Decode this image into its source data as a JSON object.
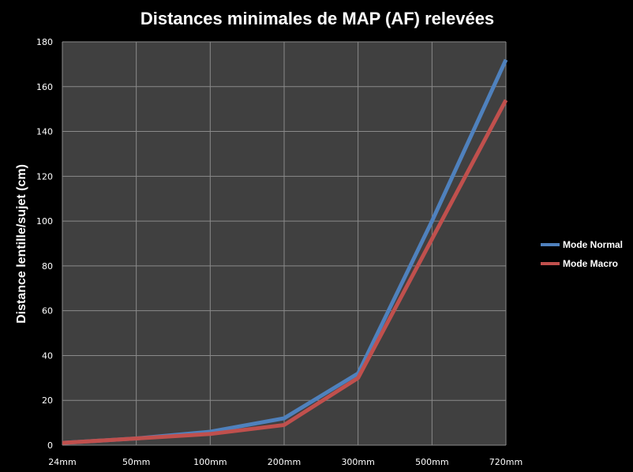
{
  "chart_data": {
    "type": "line",
    "title": "Distances minimales de MAP (AF) relevées",
    "xlabel": "",
    "ylabel": "Distance lentille/sujet (cm)",
    "categories": [
      "24mm",
      "50mm",
      "100mm",
      "200mm",
      "300mm",
      "500mm",
      "720mm"
    ],
    "ylim": [
      0,
      180
    ],
    "yticks": [
      0,
      20,
      40,
      60,
      80,
      100,
      120,
      140,
      160,
      180
    ],
    "grid": true,
    "legend_position": "right",
    "series": [
      {
        "name": "Mode Normal",
        "color": "#4f81bd",
        "values": [
          1,
          3,
          6,
          12,
          32,
          100,
          172
        ]
      },
      {
        "name": "Mode Macro",
        "color": "#c0504d",
        "values": [
          1,
          3,
          5,
          9,
          30,
          92,
          154
        ]
      }
    ],
    "colors": {
      "background": "#000000",
      "plot_area": "#404040",
      "gridline": "#8a8a8a",
      "text": "#ffffff"
    }
  }
}
